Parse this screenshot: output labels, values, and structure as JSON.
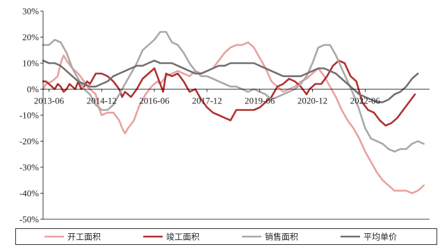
{
  "chart_data": {
    "type": "line",
    "title": "",
    "xlabel": "",
    "ylabel": "",
    "x_range": [
      "2013-04",
      "2024-04"
    ],
    "ylim": [
      -50,
      30
    ],
    "y_ticks": [
      30,
      20,
      10,
      0,
      -10,
      -20,
      -30,
      -40,
      -50
    ],
    "y_tick_labels": [
      "30%",
      "20%",
      "10%",
      "0%",
      "-10%",
      "-20%",
      "-30%",
      "-40%",
      "-50%"
    ],
    "x_ticks": [
      "2013-06",
      "2014-12",
      "2016-06",
      "2017-12",
      "2019-06",
      "2020-12",
      "2022-06"
    ],
    "grid": false,
    "legend_position": "bottom",
    "series": [
      {
        "name": "开工面积",
        "color": "#e8a0a0",
        "points": [
          [
            "2013-04",
            0
          ],
          [
            "2013-05",
            2
          ],
          [
            "2013-07",
            3
          ],
          [
            "2013-09",
            5
          ],
          [
            "2013-10",
            10
          ],
          [
            "2013-11",
            13
          ],
          [
            "2013-12",
            11
          ],
          [
            "2014-02",
            8
          ],
          [
            "2014-04",
            6
          ],
          [
            "2014-06",
            3
          ],
          [
            "2014-07",
            1
          ],
          [
            "2014-08",
            0
          ],
          [
            "2014-10",
            -2
          ],
          [
            "2014-11",
            -7
          ],
          [
            "2014-12",
            -10
          ],
          [
            "2015-02",
            -9
          ],
          [
            "2015-04",
            -9
          ],
          [
            "2015-06",
            -12
          ],
          [
            "2015-07",
            -15
          ],
          [
            "2015-08",
            -17
          ],
          [
            "2015-09",
            -15
          ],
          [
            "2015-11",
            -12
          ],
          [
            "2016-01",
            -6
          ],
          [
            "2016-03",
            -2
          ],
          [
            "2016-05",
            1
          ],
          [
            "2016-07",
            3
          ],
          [
            "2016-08",
            2
          ],
          [
            "2016-10",
            5
          ],
          [
            "2016-12",
            6
          ],
          [
            "2017-02",
            7
          ],
          [
            "2017-04",
            6
          ],
          [
            "2017-06",
            5
          ],
          [
            "2017-08",
            7
          ],
          [
            "2017-10",
            6
          ],
          [
            "2017-12",
            7
          ],
          [
            "2018-02",
            8
          ],
          [
            "2018-04",
            11
          ],
          [
            "2018-06",
            14
          ],
          [
            "2018-08",
            16
          ],
          [
            "2018-10",
            17
          ],
          [
            "2018-12",
            17
          ],
          [
            "2019-02",
            18
          ],
          [
            "2019-04",
            16
          ],
          [
            "2019-06",
            12
          ],
          [
            "2019-08",
            8
          ],
          [
            "2019-10",
            3
          ],
          [
            "2019-12",
            1
          ],
          [
            "2020-02",
            -1
          ],
          [
            "2020-04",
            0
          ],
          [
            "2020-06",
            1
          ],
          [
            "2020-08",
            3
          ],
          [
            "2020-10",
            4
          ],
          [
            "2020-12",
            6
          ],
          [
            "2021-02",
            8
          ],
          [
            "2021-04",
            5
          ],
          [
            "2021-06",
            1
          ],
          [
            "2021-08",
            -3
          ],
          [
            "2021-10",
            -8
          ],
          [
            "2021-12",
            -12
          ],
          [
            "2022-02",
            -15
          ],
          [
            "2022-04",
            -19
          ],
          [
            "2022-06",
            -24
          ],
          [
            "2022-08",
            -28
          ],
          [
            "2022-10",
            -32
          ],
          [
            "2022-12",
            -35
          ],
          [
            "2023-02",
            -37
          ],
          [
            "2023-04",
            -39
          ],
          [
            "2023-06",
            -39
          ],
          [
            "2023-08",
            -39
          ],
          [
            "2023-10",
            -40
          ],
          [
            "2023-12",
            -39
          ],
          [
            "2024-02",
            -37
          ]
        ]
      },
      {
        "name": "竣工面积",
        "color": "#b03030",
        "points": [
          [
            "2013-04",
            3
          ],
          [
            "2013-05",
            3
          ],
          [
            "2013-06",
            2
          ],
          [
            "2013-07",
            1
          ],
          [
            "2013-08",
            0
          ],
          [
            "2013-09",
            2
          ],
          [
            "2013-10",
            1
          ],
          [
            "2013-11",
            -1
          ],
          [
            "2013-12",
            0
          ],
          [
            "2014-01",
            2
          ],
          [
            "2014-02",
            1
          ],
          [
            "2014-03",
            0
          ],
          [
            "2014-04",
            3
          ],
          [
            "2014-05",
            0
          ],
          [
            "2014-06",
            1
          ],
          [
            "2014-07",
            3
          ],
          [
            "2014-08",
            2
          ],
          [
            "2014-09",
            4
          ],
          [
            "2014-10",
            6
          ],
          [
            "2014-12",
            6
          ],
          [
            "2015-02",
            5
          ],
          [
            "2015-04",
            3
          ],
          [
            "2015-06",
            0
          ],
          [
            "2015-07",
            -3
          ],
          [
            "2015-08",
            -1
          ],
          [
            "2015-10",
            -3
          ],
          [
            "2015-12",
            0
          ],
          [
            "2016-02",
            4
          ],
          [
            "2016-04",
            6
          ],
          [
            "2016-06",
            8
          ],
          [
            "2016-08",
            2
          ],
          [
            "2016-09",
            -1
          ],
          [
            "2016-10",
            6
          ],
          [
            "2016-12",
            5
          ],
          [
            "2017-02",
            6
          ],
          [
            "2017-04",
            3
          ],
          [
            "2017-06",
            -1
          ],
          [
            "2017-08",
            0
          ],
          [
            "2017-10",
            -4
          ],
          [
            "2017-12",
            -7
          ],
          [
            "2018-02",
            -9
          ],
          [
            "2018-04",
            -10
          ],
          [
            "2018-06",
            -11
          ],
          [
            "2018-08",
            -12
          ],
          [
            "2018-10",
            -8
          ],
          [
            "2018-12",
            -8
          ],
          [
            "2019-02",
            -8
          ],
          [
            "2019-04",
            -8
          ],
          [
            "2019-06",
            -7
          ],
          [
            "2019-08",
            -5
          ],
          [
            "2019-10",
            -3
          ],
          [
            "2019-12",
            1
          ],
          [
            "2020-02",
            2
          ],
          [
            "2020-04",
            4
          ],
          [
            "2020-06",
            3
          ],
          [
            "2020-08",
            1
          ],
          [
            "2020-10",
            -2
          ],
          [
            "2020-11",
            0
          ],
          [
            "2021-01",
            2
          ],
          [
            "2021-03",
            2
          ],
          [
            "2021-05",
            5
          ],
          [
            "2021-07",
            9
          ],
          [
            "2021-09",
            11
          ],
          [
            "2021-11",
            10
          ],
          [
            "2022-01",
            5
          ],
          [
            "2022-03",
            3
          ],
          [
            "2022-05",
            -5
          ],
          [
            "2022-07",
            -8
          ],
          [
            "2022-09",
            -9
          ],
          [
            "2022-11",
            -12
          ],
          [
            "2023-01",
            -14
          ],
          [
            "2023-03",
            -13
          ],
          [
            "2023-05",
            -11
          ],
          [
            "2023-07",
            -8
          ],
          [
            "2023-09",
            -5
          ],
          [
            "2023-11",
            -2
          ]
        ]
      },
      {
        "name": "销售面积",
        "color": "#a8a8a8",
        "points": [
          [
            "2013-04",
            17
          ],
          [
            "2013-06",
            17
          ],
          [
            "2013-08",
            19
          ],
          [
            "2013-10",
            18
          ],
          [
            "2013-12",
            14
          ],
          [
            "2014-02",
            8
          ],
          [
            "2014-04",
            4
          ],
          [
            "2014-06",
            0
          ],
          [
            "2014-08",
            -2
          ],
          [
            "2014-10",
            -6
          ],
          [
            "2014-12",
            -8
          ],
          [
            "2015-02",
            -8
          ],
          [
            "2015-04",
            -6
          ],
          [
            "2015-06",
            -2
          ],
          [
            "2015-08",
            2
          ],
          [
            "2015-10",
            6
          ],
          [
            "2015-12",
            10
          ],
          [
            "2016-02",
            15
          ],
          [
            "2016-04",
            17
          ],
          [
            "2016-06",
            19
          ],
          [
            "2016-08",
            22
          ],
          [
            "2016-10",
            22
          ],
          [
            "2016-12",
            18
          ],
          [
            "2017-02",
            17
          ],
          [
            "2017-04",
            14
          ],
          [
            "2017-06",
            10
          ],
          [
            "2017-08",
            7
          ],
          [
            "2017-10",
            5
          ],
          [
            "2017-12",
            5
          ],
          [
            "2018-02",
            4
          ],
          [
            "2018-04",
            3
          ],
          [
            "2018-06",
            2
          ],
          [
            "2018-08",
            1
          ],
          [
            "2018-10",
            1
          ],
          [
            "2018-12",
            0
          ],
          [
            "2019-02",
            -1
          ],
          [
            "2019-04",
            0
          ],
          [
            "2019-06",
            -1
          ],
          [
            "2019-08",
            -2
          ],
          [
            "2019-10",
            -4
          ],
          [
            "2019-12",
            -3
          ],
          [
            "2020-02",
            -2
          ],
          [
            "2020-04",
            -1
          ],
          [
            "2020-06",
            0
          ],
          [
            "2020-08",
            2
          ],
          [
            "2020-10",
            5
          ],
          [
            "2020-12",
            10
          ],
          [
            "2021-02",
            16
          ],
          [
            "2021-04",
            17
          ],
          [
            "2021-06",
            17
          ],
          [
            "2021-08",
            13
          ],
          [
            "2021-10",
            8
          ],
          [
            "2021-12",
            3
          ],
          [
            "2022-02",
            -2
          ],
          [
            "2022-04",
            -8
          ],
          [
            "2022-06",
            -15
          ],
          [
            "2022-08",
            -19
          ],
          [
            "2022-10",
            -20
          ],
          [
            "2022-12",
            -21
          ],
          [
            "2023-02",
            -23
          ],
          [
            "2023-04",
            -24
          ],
          [
            "2023-06",
            -23
          ],
          [
            "2023-08",
            -23
          ],
          [
            "2023-10",
            -21
          ],
          [
            "2023-12",
            -20
          ],
          [
            "2024-02",
            -21
          ]
        ]
      },
      {
        "name": "平均单价",
        "color": "#707070",
        "points": [
          [
            "2013-04",
            11
          ],
          [
            "2013-06",
            10
          ],
          [
            "2013-08",
            10
          ],
          [
            "2013-10",
            9
          ],
          [
            "2013-12",
            7
          ],
          [
            "2014-02",
            5
          ],
          [
            "2014-04",
            3
          ],
          [
            "2014-06",
            2
          ],
          [
            "2014-08",
            1
          ],
          [
            "2014-10",
            1
          ],
          [
            "2014-12",
            2
          ],
          [
            "2015-02",
            3
          ],
          [
            "2015-04",
            5
          ],
          [
            "2015-06",
            6
          ],
          [
            "2015-08",
            7
          ],
          [
            "2015-10",
            8
          ],
          [
            "2015-12",
            9
          ],
          [
            "2016-02",
            9
          ],
          [
            "2016-04",
            10
          ],
          [
            "2016-06",
            11
          ],
          [
            "2016-08",
            10
          ],
          [
            "2016-10",
            10
          ],
          [
            "2016-12",
            10
          ],
          [
            "2017-02",
            9
          ],
          [
            "2017-04",
            8
          ],
          [
            "2017-06",
            7
          ],
          [
            "2017-08",
            6
          ],
          [
            "2017-10",
            6
          ],
          [
            "2017-12",
            7
          ],
          [
            "2018-02",
            8
          ],
          [
            "2018-04",
            9
          ],
          [
            "2018-06",
            9
          ],
          [
            "2018-08",
            10
          ],
          [
            "2018-10",
            10
          ],
          [
            "2018-12",
            10
          ],
          [
            "2019-02",
            10
          ],
          [
            "2019-04",
            10
          ],
          [
            "2019-06",
            9
          ],
          [
            "2019-08",
            8
          ],
          [
            "2019-10",
            7
          ],
          [
            "2019-12",
            6
          ],
          [
            "2020-02",
            5
          ],
          [
            "2020-04",
            5
          ],
          [
            "2020-06",
            5
          ],
          [
            "2020-08",
            5
          ],
          [
            "2020-10",
            6
          ],
          [
            "2020-12",
            7
          ],
          [
            "2021-02",
            8
          ],
          [
            "2021-04",
            8
          ],
          [
            "2021-06",
            7
          ],
          [
            "2021-08",
            6
          ],
          [
            "2021-10",
            4
          ],
          [
            "2021-12",
            2
          ],
          [
            "2022-02",
            0
          ],
          [
            "2022-04",
            -2
          ],
          [
            "2022-06",
            -3
          ],
          [
            "2022-08",
            -4
          ],
          [
            "2022-10",
            -5
          ],
          [
            "2022-12",
            -5
          ],
          [
            "2023-02",
            -4
          ],
          [
            "2023-04",
            -2
          ],
          [
            "2023-06",
            -1
          ],
          [
            "2023-08",
            1
          ],
          [
            "2023-10",
            4
          ],
          [
            "2023-12",
            6
          ]
        ]
      }
    ]
  }
}
